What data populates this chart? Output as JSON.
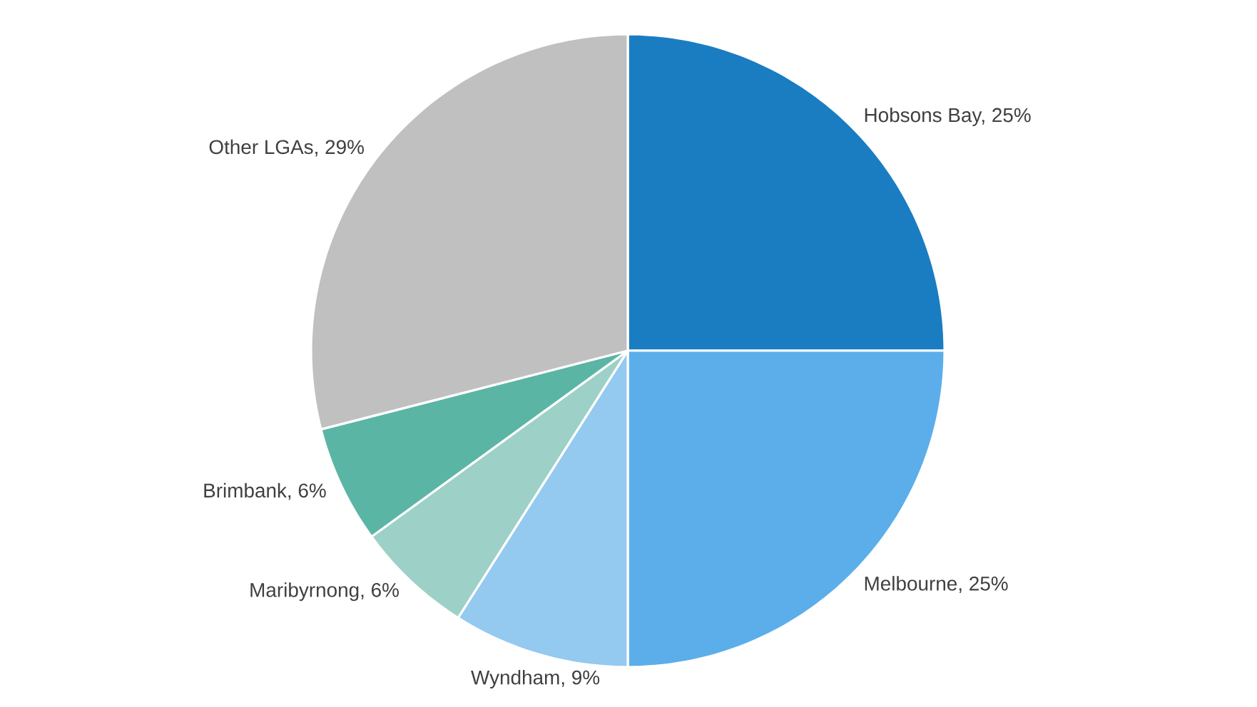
{
  "chart_data": {
    "type": "pie",
    "categories": [
      "Hobsons Bay, 25%",
      "Melbourne, 25%",
      "Wyndham, 9%",
      "Maribyrnong, 6%",
      "Brimbank, 6%",
      "Other LGAs, 29%"
    ],
    "values": [
      25,
      25,
      9,
      6,
      6,
      29
    ],
    "colors": [
      "#1a7dc2",
      "#5baeea",
      "#94c9f0",
      "#9dd0c6",
      "#5bb5a4",
      "#c0c0c0"
    ]
  }
}
